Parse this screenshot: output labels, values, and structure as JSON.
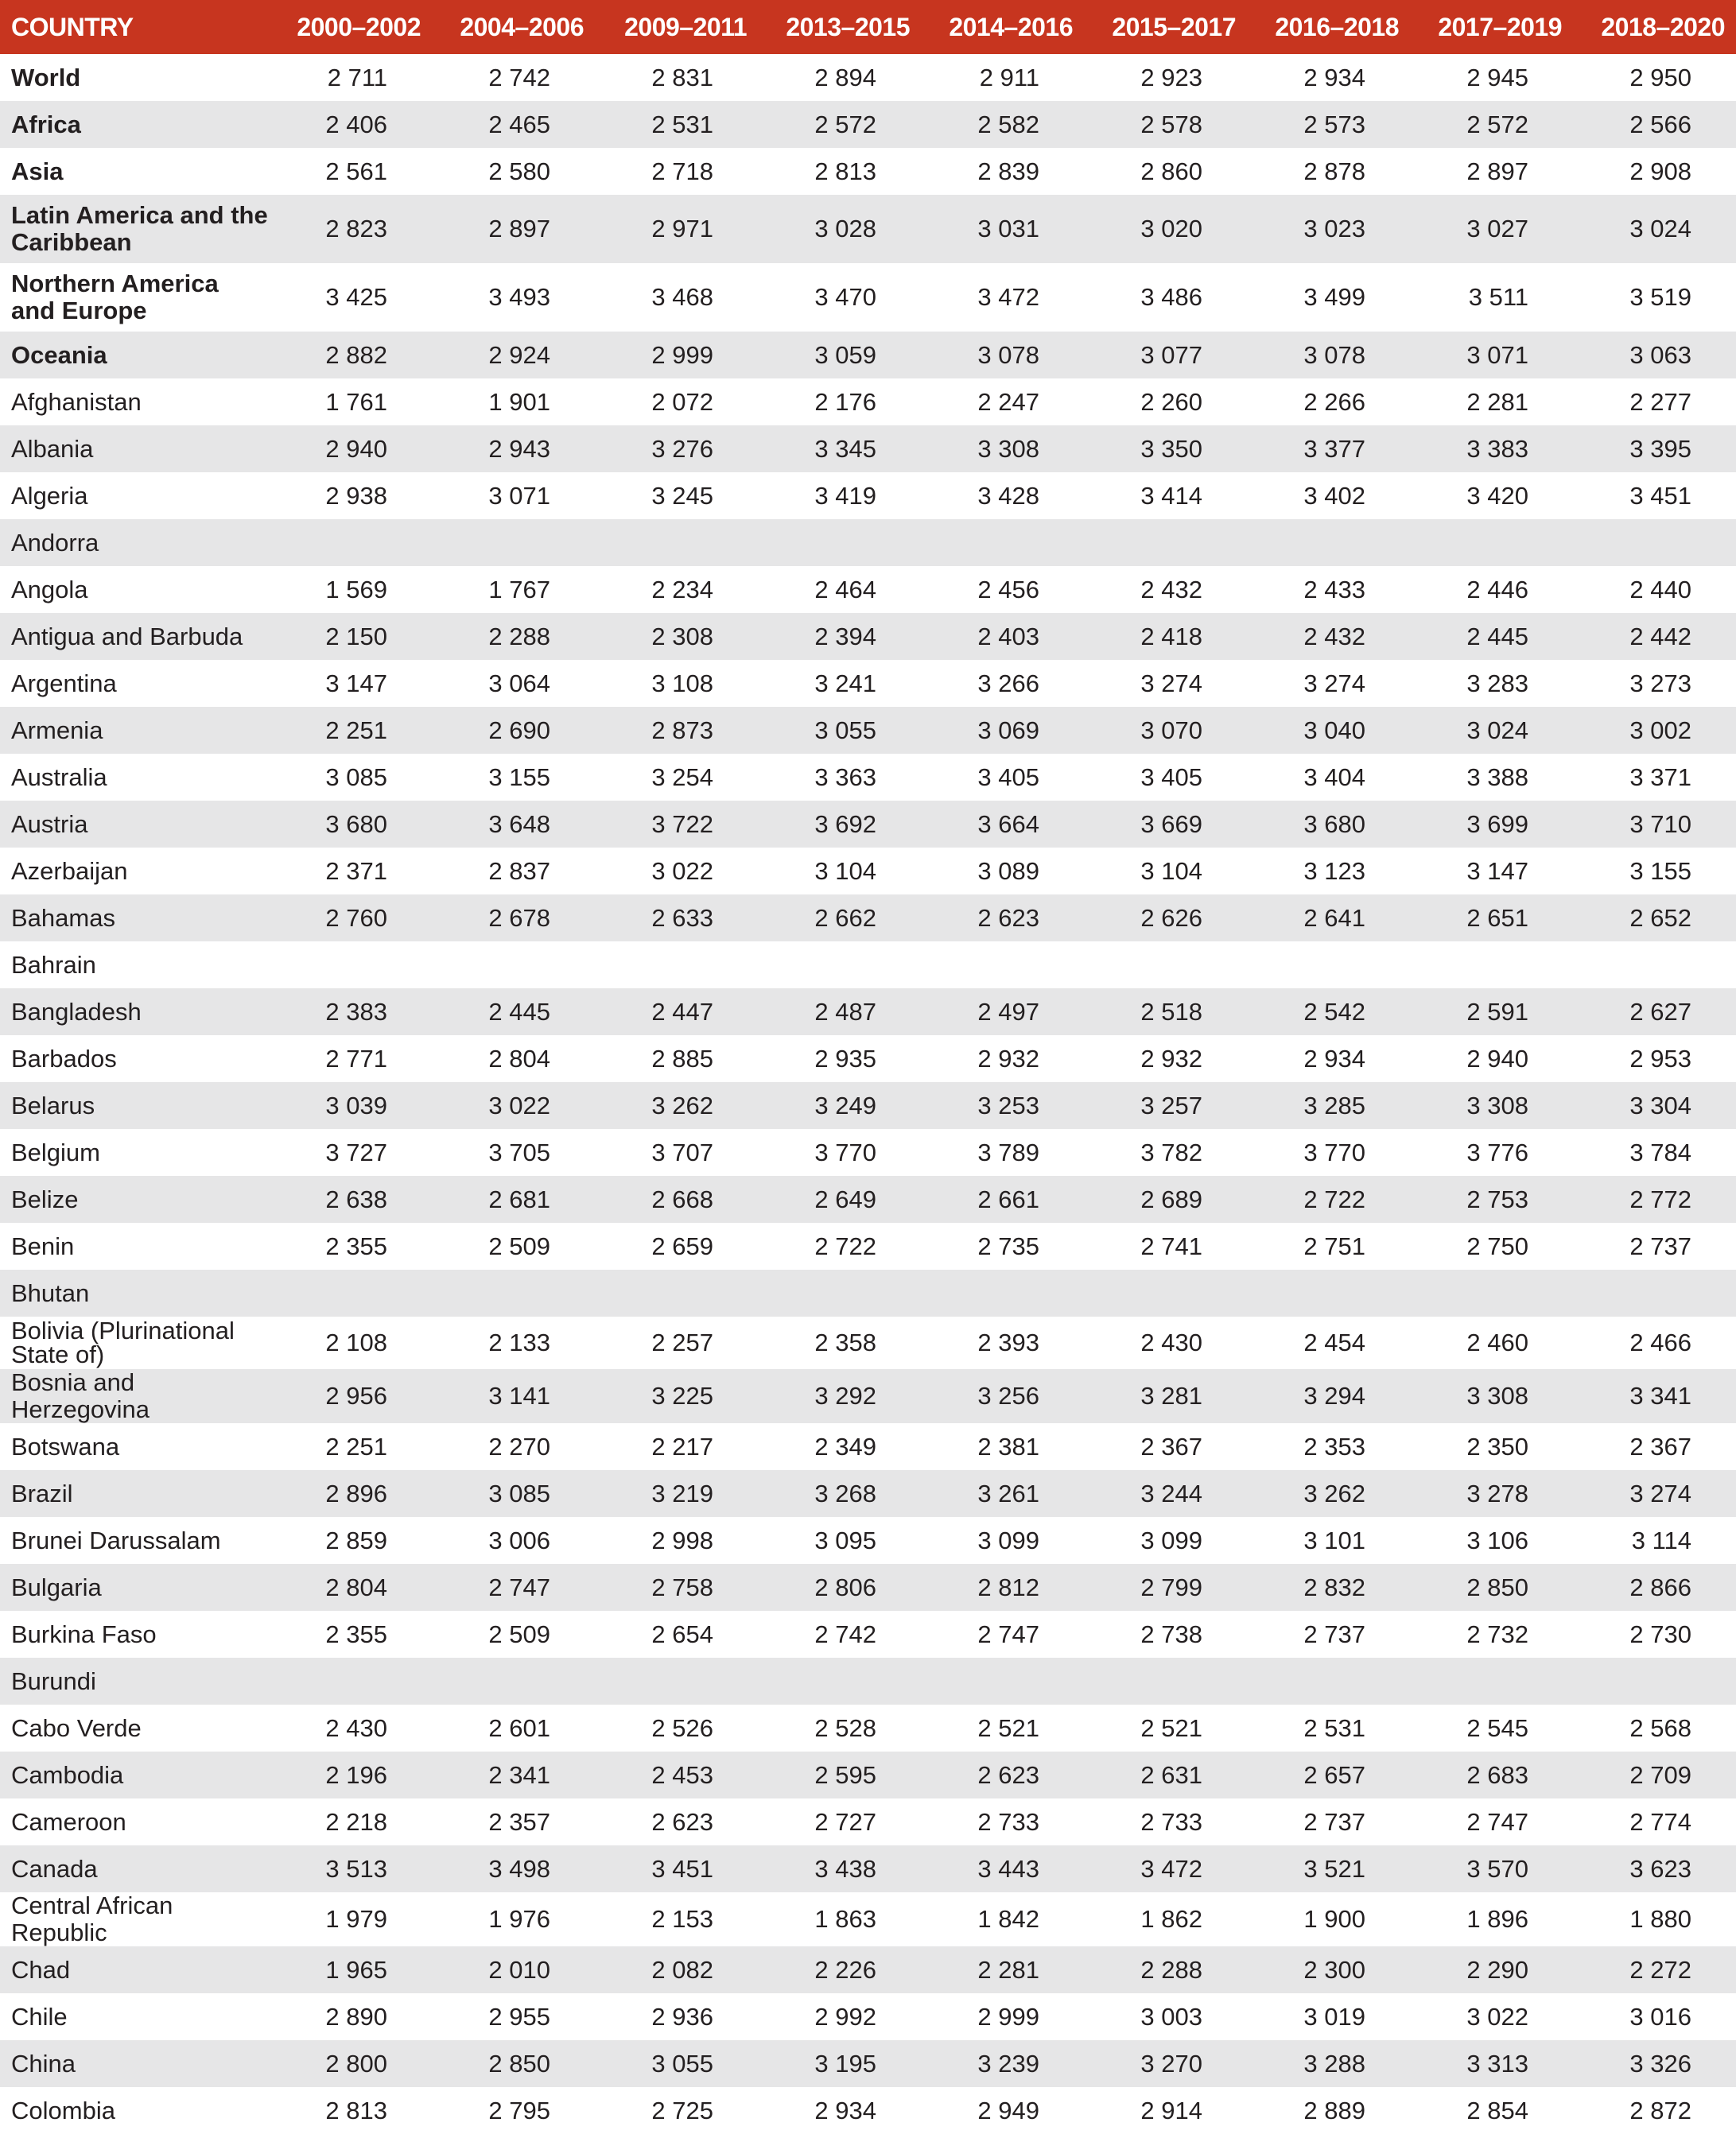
{
  "table": {
    "headers": [
      "COUNTRY",
      "2000–2002",
      "2004–2006",
      "2009–2011",
      "2013–2015",
      "2014–2016",
      "2015–2017",
      "2016–2018",
      "2017–2019",
      "2018–2020"
    ],
    "header_color": "#c7351f",
    "stripe_color": "#e6e6e7",
    "rows": [
      {
        "country": "World",
        "bold": true,
        "values": [
          "2 711",
          "2 742",
          "2 831",
          "2 894",
          "2 911",
          "2 923",
          "2 934",
          "2 945",
          "2 950"
        ]
      },
      {
        "country": "Africa",
        "bold": true,
        "values": [
          "2 406",
          "2 465",
          "2 531",
          "2 572",
          "2 582",
          "2 578",
          "2 573",
          "2 572",
          "2 566"
        ]
      },
      {
        "country": "Asia",
        "bold": true,
        "values": [
          "2 561",
          "2 580",
          "2 718",
          "2 813",
          "2 839",
          "2 860",
          "2 878",
          "2 897",
          "2 908"
        ]
      },
      {
        "country": "Latin America and the Caribbean",
        "bold": true,
        "values": [
          "2 823",
          "2 897",
          "2 971",
          "3 028",
          "3 031",
          "3 020",
          "3 023",
          "3 027",
          "3 024"
        ]
      },
      {
        "country": "Northern America and Europe",
        "bold": true,
        "values": [
          "3 425",
          "3 493",
          "3 468",
          "3 470",
          "3 472",
          "3 486",
          "3 499",
          "3 511",
          "3 519"
        ]
      },
      {
        "country": "Oceania",
        "bold": true,
        "values": [
          "2 882",
          "2 924",
          "2 999",
          "3 059",
          "3 078",
          "3 077",
          "3 078",
          "3 071",
          "3 063"
        ]
      },
      {
        "country": "Afghanistan",
        "values": [
          "1 761",
          "1 901",
          "2 072",
          "2 176",
          "2 247",
          "2 260",
          "2 266",
          "2 281",
          "2 277"
        ]
      },
      {
        "country": "Albania",
        "values": [
          "2 940",
          "2 943",
          "3 276",
          "3 345",
          "3 308",
          "3 350",
          "3 377",
          "3 383",
          "3 395"
        ]
      },
      {
        "country": "Algeria",
        "values": [
          "2 938",
          "3 071",
          "3 245",
          "3 419",
          "3 428",
          "3 414",
          "3 402",
          "3 420",
          "3 451"
        ]
      },
      {
        "country": "Andorra",
        "values": [
          "",
          "",
          "",
          "",
          "",
          "",
          "",
          "",
          ""
        ]
      },
      {
        "country": "Angola",
        "values": [
          "1 569",
          "1 767",
          "2 234",
          "2 464",
          "2 456",
          "2 432",
          "2 433",
          "2 446",
          "2 440"
        ]
      },
      {
        "country": "Antigua and Barbuda",
        "values": [
          "2 150",
          "2 288",
          "2 308",
          "2 394",
          "2 403",
          "2 418",
          "2 432",
          "2 445",
          "2 442"
        ]
      },
      {
        "country": "Argentina",
        "values": [
          "3 147",
          "3 064",
          "3 108",
          "3 241",
          "3 266",
          "3 274",
          "3 274",
          "3 283",
          "3 273"
        ]
      },
      {
        "country": "Armenia",
        "values": [
          "2 251",
          "2 690",
          "2 873",
          "3 055",
          "3 069",
          "3 070",
          "3 040",
          "3 024",
          "3 002"
        ]
      },
      {
        "country": "Australia",
        "values": [
          "3 085",
          "3 155",
          "3 254",
          "3 363",
          "3 405",
          "3 405",
          "3 404",
          "3 388",
          "3 371"
        ]
      },
      {
        "country": "Austria",
        "values": [
          "3 680",
          "3 648",
          "3 722",
          "3 692",
          "3 664",
          "3 669",
          "3 680",
          "3 699",
          "3 710"
        ]
      },
      {
        "country": "Azerbaijan",
        "values": [
          "2 371",
          "2 837",
          "3 022",
          "3 104",
          "3 089",
          "3 104",
          "3 123",
          "3 147",
          "3 155"
        ]
      },
      {
        "country": "Bahamas",
        "values": [
          "2 760",
          "2 678",
          "2 633",
          "2 662",
          "2 623",
          "2 626",
          "2 641",
          "2 651",
          "2 652"
        ]
      },
      {
        "country": "Bahrain",
        "values": [
          "",
          "",
          "",
          "",
          "",
          "",
          "",
          "",
          ""
        ]
      },
      {
        "country": "Bangladesh",
        "values": [
          "2 383",
          "2 445",
          "2 447",
          "2 487",
          "2 497",
          "2 518",
          "2 542",
          "2 591",
          "2 627"
        ]
      },
      {
        "country": "Barbados",
        "values": [
          "2 771",
          "2 804",
          "2 885",
          "2 935",
          "2 932",
          "2 932",
          "2 934",
          "2 940",
          "2 953"
        ]
      },
      {
        "country": "Belarus",
        "values": [
          "3 039",
          "3 022",
          "3 262",
          "3 249",
          "3 253",
          "3 257",
          "3 285",
          "3 308",
          "3 304"
        ]
      },
      {
        "country": "Belgium",
        "values": [
          "3 727",
          "3 705",
          "3 707",
          "3 770",
          "3 789",
          "3 782",
          "3 770",
          "3 776",
          "3 784"
        ]
      },
      {
        "country": "Belize",
        "values": [
          "2 638",
          "2 681",
          "2 668",
          "2 649",
          "2 661",
          "2 689",
          "2 722",
          "2 753",
          "2 772"
        ]
      },
      {
        "country": "Benin",
        "values": [
          "2 355",
          "2 509",
          "2 659",
          "2 722",
          "2 735",
          "2 741",
          "2 751",
          "2 750",
          "2 737"
        ]
      },
      {
        "country": "Bhutan",
        "values": [
          "",
          "",
          "",
          "",
          "",
          "",
          "",
          "",
          ""
        ]
      },
      {
        "country": "Bolivia (Plurinational State of)",
        "values": [
          "2 108",
          "2 133",
          "2 257",
          "2 358",
          "2 393",
          "2 430",
          "2 454",
          "2 460",
          "2 466"
        ]
      },
      {
        "country": "Bosnia and Herzegovina",
        "values": [
          "2 956",
          "3 141",
          "3 225",
          "3 292",
          "3 256",
          "3 281",
          "3 294",
          "3 308",
          "3 341"
        ]
      },
      {
        "country": "Botswana",
        "values": [
          "2 251",
          "2 270",
          "2 217",
          "2 349",
          "2 381",
          "2 367",
          "2 353",
          "2 350",
          "2 367"
        ]
      },
      {
        "country": "Brazil",
        "values": [
          "2 896",
          "3 085",
          "3 219",
          "3 268",
          "3 261",
          "3 244",
          "3 262",
          "3 278",
          "3 274"
        ]
      },
      {
        "country": "Brunei Darussalam",
        "values": [
          "2 859",
          "3 006",
          "2 998",
          "3 095",
          "3 099",
          "3 099",
          "3 101",
          "3 106",
          "3 114"
        ]
      },
      {
        "country": "Bulgaria",
        "values": [
          "2 804",
          "2 747",
          "2 758",
          "2 806",
          "2 812",
          "2 799",
          "2 832",
          "2 850",
          "2 866"
        ]
      },
      {
        "country": "Burkina Faso",
        "values": [
          "2 355",
          "2 509",
          "2 654",
          "2 742",
          "2 747",
          "2 738",
          "2 737",
          "2 732",
          "2 730"
        ]
      },
      {
        "country": "Burundi",
        "values": [
          "",
          "",
          "",
          "",
          "",
          "",
          "",
          "",
          ""
        ]
      },
      {
        "country": "Cabo Verde",
        "values": [
          "2 430",
          "2 601",
          "2 526",
          "2 528",
          "2 521",
          "2 521",
          "2 531",
          "2 545",
          "2 568"
        ]
      },
      {
        "country": "Cambodia",
        "values": [
          "2 196",
          "2 341",
          "2 453",
          "2 595",
          "2 623",
          "2 631",
          "2 657",
          "2 683",
          "2 709"
        ]
      },
      {
        "country": "Cameroon",
        "values": [
          "2 218",
          "2 357",
          "2 623",
          "2 727",
          "2 733",
          "2 733",
          "2 737",
          "2 747",
          "2 774"
        ]
      },
      {
        "country": "Canada",
        "values": [
          "3 513",
          "3 498",
          "3 451",
          "3 438",
          "3 443",
          "3 472",
          "3 521",
          "3 570",
          "3 623"
        ]
      },
      {
        "country": "Central African Republic",
        "values": [
          "1 979",
          "1 976",
          "2 153",
          "1 863",
          "1 842",
          "1 862",
          "1 900",
          "1 896",
          "1 880"
        ]
      },
      {
        "country": "Chad",
        "values": [
          "1 965",
          "2 010",
          "2 082",
          "2 226",
          "2 281",
          "2 288",
          "2 300",
          "2 290",
          "2 272"
        ]
      },
      {
        "country": "Chile",
        "values": [
          "2 890",
          "2 955",
          "2 936",
          "2 992",
          "2 999",
          "3 003",
          "3 019",
          "3 022",
          "3 016"
        ]
      },
      {
        "country": "China",
        "values": [
          "2 800",
          "2 850",
          "3 055",
          "3 195",
          "3 239",
          "3 270",
          "3 288",
          "3 313",
          "3 326"
        ]
      },
      {
        "country": "Colombia",
        "values": [
          "2 813",
          "2 795",
          "2 725",
          "2 934",
          "2 949",
          "2 914",
          "2 889",
          "2 854",
          "2 872"
        ]
      }
    ]
  }
}
